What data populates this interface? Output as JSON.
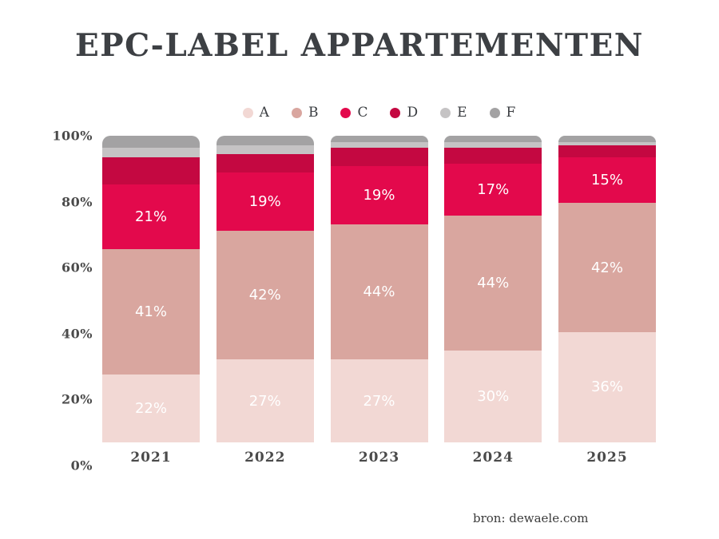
{
  "chart_data": {
    "type": "bar",
    "variant": "stacked-percent",
    "title": "EPC-LABEL APPARTEMENTEN",
    "categories": [
      "2021",
      "2022",
      "2023",
      "2024",
      "2025"
    ],
    "series": [
      {
        "name": "A",
        "color": "#f2d8d4",
        "labeled": true,
        "values": [
          22,
          27,
          27,
          30,
          36
        ]
      },
      {
        "name": "B",
        "color": "#d9a69f",
        "labeled": true,
        "values": [
          41,
          42,
          44,
          44,
          42
        ]
      },
      {
        "name": "C",
        "color": "#e3094c",
        "labeled": true,
        "values": [
          21,
          19,
          19,
          17,
          15
        ]
      },
      {
        "name": "D",
        "color": "#c40841",
        "labeled": false,
        "values": [
          9,
          6,
          6,
          5,
          4
        ]
      },
      {
        "name": "E",
        "color": "#c5c3c4",
        "labeled": false,
        "values": [
          3,
          3,
          2,
          2,
          1
        ]
      },
      {
        "name": "F",
        "color": "#a3a2a3",
        "labeled": false,
        "values": [
          4,
          3,
          2,
          2,
          2
        ]
      }
    ],
    "value_label_suffix": "%",
    "y_ticks": [
      "100%",
      "80%",
      "60%",
      "40%",
      "20%",
      "0%"
    ],
    "ylim": [
      0,
      100
    ],
    "grid": false,
    "legend_position": "top",
    "source": "bron: dewaele.com"
  }
}
